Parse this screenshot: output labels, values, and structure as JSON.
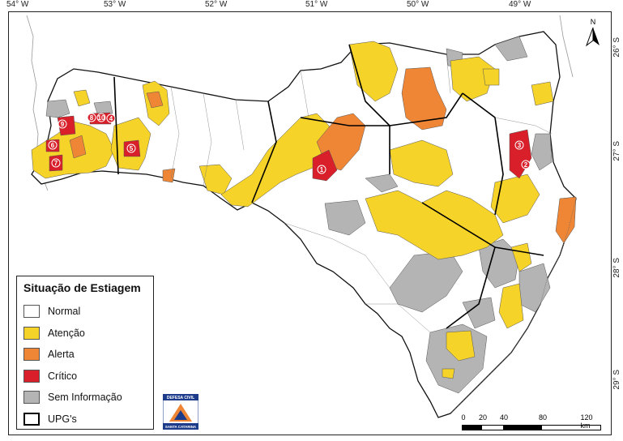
{
  "longitude_ticks": [
    "54° W",
    "53° W",
    "52° W",
    "51° W",
    "50° W",
    "49° W"
  ],
  "latitude_ticks": [
    "26° S",
    "27° S",
    "28° S",
    "29° S"
  ],
  "legend": {
    "title": "Situação de Estiagem",
    "items": [
      {
        "label": "Normal",
        "color": "#ffffff"
      },
      {
        "label": "Atenção",
        "color": "#f5d328"
      },
      {
        "label": "Alerta",
        "color": "#ee8636"
      },
      {
        "label": "Crítico",
        "color": "#d81f2a"
      },
      {
        "label": "Sem Informação",
        "color": "#b4b4b4"
      },
      {
        "label": "UPG's",
        "color": "#000000"
      }
    ]
  },
  "north_label": "N",
  "scale": {
    "labels": [
      "0",
      "20",
      "40",
      "80",
      "120 km"
    ]
  },
  "critical_markers": [
    "1",
    "2",
    "3",
    "4",
    "5",
    "6",
    "7",
    "8",
    "9",
    "10"
  ],
  "logo": {
    "line1": "DEFESA CIVIL",
    "line2": "SANTA CATARINA"
  },
  "colors": {
    "normal": "#ffffff",
    "atencao": "#f5d328",
    "alerta": "#ee8636",
    "critico": "#d81f2a",
    "sem_informacao": "#b4b4b4"
  }
}
